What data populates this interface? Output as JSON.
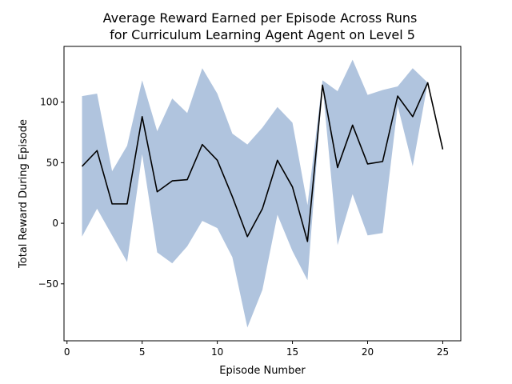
{
  "chart_data": {
    "type": "line",
    "title": "Average Reward Earned per Episode Across Runs",
    "subtitle": "for Curriculum Learning Agent Agent on Level 5",
    "xlabel": "Episode Number",
    "ylabel": "Total Reward During Episode",
    "xlim": [
      -0.2,
      26.2
    ],
    "ylim": [
      -97,
      146
    ],
    "grid": false,
    "x_ticks": [
      0,
      5,
      10,
      15,
      20,
      25
    ],
    "y_ticks": [
      -50,
      0,
      50,
      100
    ],
    "x": [
      1,
      2,
      3,
      4,
      5,
      6,
      7,
      8,
      9,
      10,
      11,
      12,
      13,
      14,
      15,
      16,
      17,
      18,
      19,
      20,
      21,
      22,
      23,
      24,
      25
    ],
    "series": [
      {
        "values": [
          47,
          60,
          16,
          16,
          88,
          26,
          35,
          36,
          65,
          52,
          22,
          -11,
          12,
          52,
          30,
          -15,
          114,
          46,
          81,
          49,
          51,
          105,
          88,
          116,
          61
        ],
        "color": "#000000"
      }
    ],
    "band": {
      "upper": [
        105,
        107,
        43,
        64,
        118,
        76,
        103,
        91,
        128,
        107,
        74,
        65,
        79,
        96,
        83,
        15,
        118,
        109,
        135,
        106,
        110,
        113,
        128,
        116,
        61
      ],
      "lower": [
        -11,
        12,
        -10,
        -32,
        57,
        -24,
        -33,
        -19,
        2,
        -4,
        -28,
        -86,
        -55,
        7,
        -23,
        -47,
        114,
        -18,
        24,
        -10,
        -8,
        97,
        47,
        116,
        61
      ],
      "color": "#b0c4de"
    }
  }
}
